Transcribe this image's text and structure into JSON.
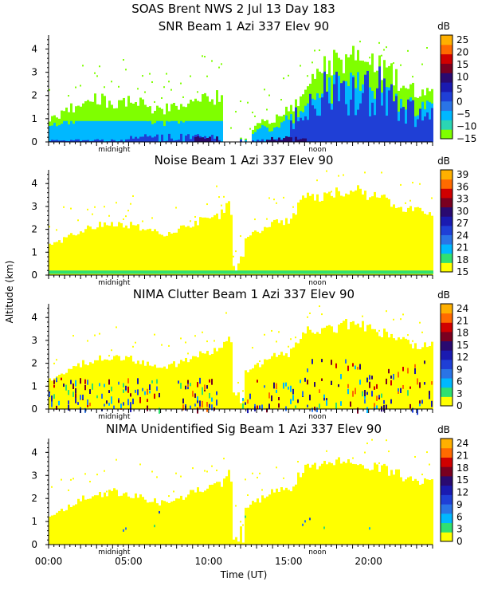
{
  "figure": {
    "title": "SOAS Brent NWS    2 Jul 13 Day 183",
    "xlabel": "Time (UT)",
    "ylabel": "Altitude (km)",
    "x_ticks": [
      "00:00",
      "05:00",
      "10:00",
      "15:00",
      "20:00"
    ],
    "midnight_label": "midnight",
    "noon_label": "noon"
  },
  "chart_data": [
    {
      "type": "heatmap",
      "title": "SNR Beam 1 Azi 337 Elev 90",
      "colorbar_unit": "dB",
      "colorbar_ticks": [
        "25",
        "20",
        "15",
        "10",
        "5",
        "0",
        "−5",
        "−10",
        "−15"
      ],
      "x": {
        "label": "Time (UT)",
        "range_hours": [
          0,
          24
        ]
      },
      "y": {
        "range_km": [
          0,
          4.6
        ],
        "ticks": [
          "4",
          "3",
          "2",
          "1",
          "0"
        ]
      },
      "echo_top_km_by_hour": [
        [
          0.0,
          1.1
        ],
        [
          1.0,
          1.3
        ],
        [
          2.0,
          1.8
        ],
        [
          3.0,
          1.9
        ],
        [
          4.0,
          1.8
        ],
        [
          5.0,
          1.8
        ],
        [
          6.0,
          1.6
        ],
        [
          7.0,
          1.4
        ],
        [
          8.0,
          1.6
        ],
        [
          9.0,
          1.8
        ],
        [
          10.0,
          2.0
        ],
        [
          10.8,
          2.0
        ],
        [
          11.5,
          0.0
        ],
        [
          13.0,
          0.8
        ],
        [
          14.0,
          1.0
        ],
        [
          15.0,
          1.5
        ],
        [
          16.0,
          2.0
        ],
        [
          16.5,
          3.3
        ],
        [
          18.0,
          3.6
        ],
        [
          19.5,
          3.7
        ],
        [
          21.0,
          3.2
        ],
        [
          22.0,
          2.5
        ],
        [
          24.0,
          2.0
        ]
      ],
      "colors": [
        "#7fff00",
        "#2bd6b4",
        "#00b8ff",
        "#2a74e6",
        "#1f3fd6",
        "#1a1ab0",
        "#2a0a70",
        "#7a0020",
        "#d00000",
        "#ff6a00",
        "#ffb000"
      ]
    },
    {
      "type": "heatmap",
      "title": "Noise Beam 1 Azi 337 Elev 90",
      "colorbar_unit": "dB",
      "colorbar_ticks": [
        "39",
        "36",
        "33",
        "30",
        "27",
        "24",
        "21",
        "18",
        "15"
      ],
      "x": {
        "label": "Time (UT)",
        "range_hours": [
          0,
          24
        ]
      },
      "y": {
        "range_km": [
          0,
          4.6
        ],
        "ticks": [
          "4",
          "3",
          "2",
          "1",
          "0"
        ]
      },
      "dominant_level_db": 15,
      "near_ground_band_km": [
        0.05,
        0.2
      ],
      "colors": [
        "#ffff00",
        "#30e070",
        "#00b8ff",
        "#2a74e6",
        "#1f3fd6",
        "#1a1ab0",
        "#2a0a70",
        "#7a0020",
        "#d00000",
        "#ff6a00",
        "#ffb000"
      ]
    },
    {
      "type": "heatmap",
      "title": "NIMA Clutter Beam 1 Azi 337 Elev 90",
      "colorbar_unit": "dB",
      "colorbar_ticks": [
        "24",
        "21",
        "18",
        "15",
        "12",
        "9",
        "6",
        "3",
        "0"
      ],
      "x": {
        "label": "Time (UT)",
        "range_hours": [
          0,
          24
        ]
      },
      "y": {
        "range_km": [
          0,
          4.6
        ],
        "ticks": [
          "4",
          "3",
          "2",
          "1",
          "0"
        ]
      },
      "dominant_level_db": 0,
      "colors": [
        "#ffff00",
        "#30e070",
        "#00b8ff",
        "#2a74e6",
        "#1f3fd6",
        "#1a1ab0",
        "#2a0a70",
        "#7a0020",
        "#d00000",
        "#ff6a00",
        "#ffb000"
      ]
    },
    {
      "type": "heatmap",
      "title": "NIMA Unidentified Sig Beam 1 Azi 337 Elev 90",
      "colorbar_unit": "dB",
      "colorbar_ticks": [
        "24",
        "21",
        "18",
        "15",
        "12",
        "9",
        "6",
        "3",
        "0"
      ],
      "x": {
        "label": "Time (UT)",
        "range_hours": [
          0,
          24
        ]
      },
      "y": {
        "range_km": [
          0,
          4.6
        ],
        "ticks": [
          "4",
          "3",
          "2",
          "1",
          "0"
        ]
      },
      "dominant_level_db": 0,
      "colors": [
        "#ffff00",
        "#30e070",
        "#00b8ff",
        "#2a74e6",
        "#1f3fd6",
        "#1a1ab0",
        "#2a0a70",
        "#7a0020",
        "#d00000",
        "#ff6a00",
        "#ffb000"
      ]
    }
  ]
}
